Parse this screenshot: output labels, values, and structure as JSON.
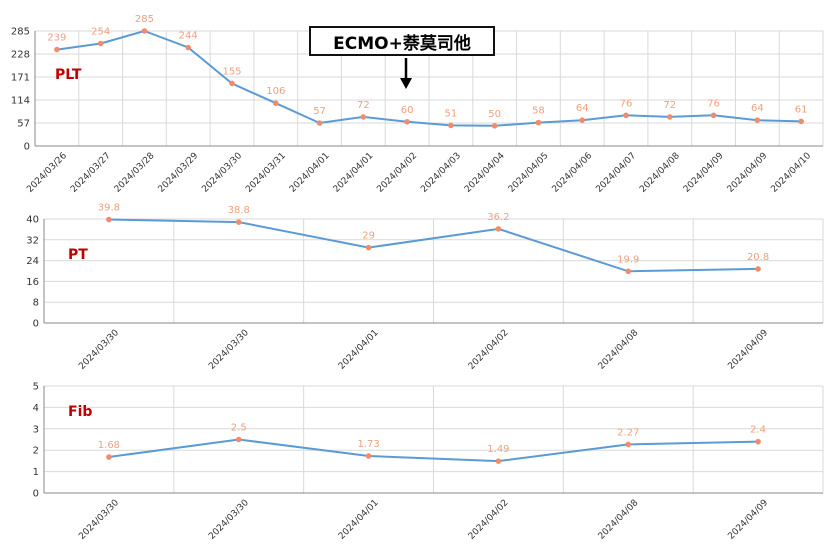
{
  "chart_data": [
    {
      "type": "line",
      "title": "",
      "label": "PLT",
      "categories": [
        "2024/03/26",
        "2024/03/27",
        "2024/03/28",
        "2024/03/29",
        "2024/03/30",
        "2024/03/31",
        "2024/04/01",
        "2024/04/01",
        "2024/04/02",
        "2024/04/03",
        "2024/04/04",
        "2024/04/05",
        "2024/04/06",
        "2024/04/07",
        "2024/04/08",
        "2024/04/09",
        "2024/04/09",
        "2024/04/10"
      ],
      "values": [
        239,
        254,
        285,
        244,
        155,
        106,
        57,
        72,
        60,
        51,
        50,
        58,
        64,
        76,
        72,
        76,
        64,
        61
      ],
      "ylim": [
        0,
        285
      ],
      "yticks": [
        0,
        57,
        114,
        171,
        228,
        285
      ],
      "grid": true
    },
    {
      "type": "line",
      "title": "",
      "label": "PT",
      "categories": [
        "2024/03/30",
        "2024/03/30",
        "2024/04/01",
        "2024/04/02",
        "2024/04/08",
        "2024/04/09"
      ],
      "values": [
        39.8,
        38.8,
        29,
        36.2,
        19.9,
        20.8
      ],
      "ylim": [
        0,
        40
      ],
      "yticks": [
        0,
        8,
        16,
        24,
        32,
        40
      ],
      "grid": true
    },
    {
      "type": "line",
      "title": "",
      "label": "Fib",
      "categories": [
        "2024/03/30",
        "2024/03/30",
        "2024/04/01",
        "2024/04/02",
        "2024/04/08",
        "2024/04/09"
      ],
      "values": [
        1.68,
        2.5,
        1.73,
        1.49,
        2.27,
        2.4
      ],
      "ylim": [
        0,
        5
      ],
      "yticks": [
        0,
        1,
        2,
        3,
        4,
        5
      ],
      "grid": true
    }
  ],
  "annotation": {
    "text": "ECMO+萘莫司他",
    "target_category": "2024/04/02"
  },
  "colors": {
    "line": "#5b9bd5",
    "marker": "#f08c6c",
    "value_label": "#f0a080",
    "series_label": "#c00000",
    "grid": "#d9d9d9",
    "axis": "#888888",
    "tick_text": "#333333"
  }
}
